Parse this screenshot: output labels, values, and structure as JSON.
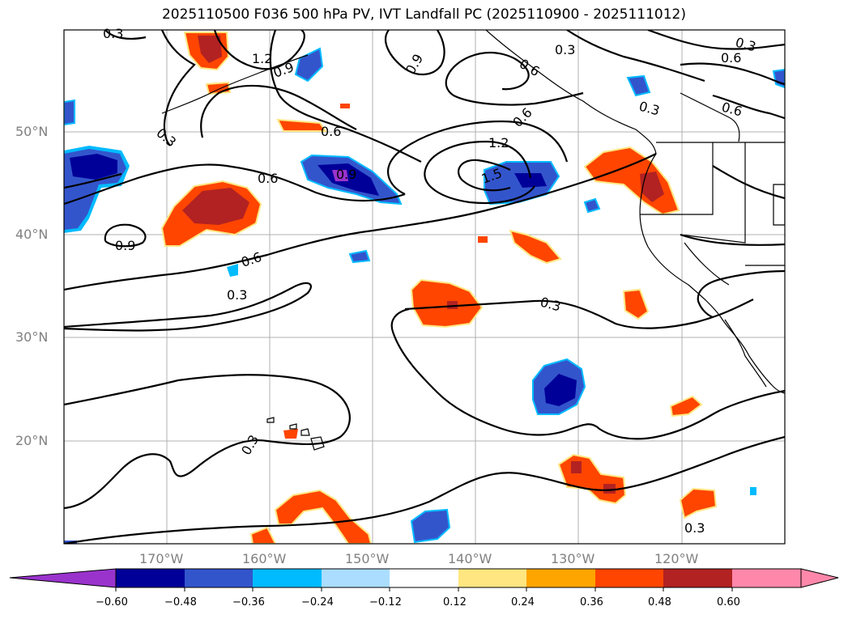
{
  "title": "2025110500 F036 500 hPa PV, IVT Landfall PC (2025110900 - 2025111012)",
  "lat_labels": [
    "50°N",
    "40°N",
    "30°N",
    "20°N"
  ],
  "lon_labels": [
    "170°W",
    "160°W",
    "150°W",
    "140°W",
    "130°W",
    "120°W"
  ],
  "contour_labels": [
    "0.3",
    "1.2",
    "0.9",
    "0.6",
    "0.3",
    "0.6",
    "0.3",
    "0.9",
    "0.6",
    "1.2",
    "1.5",
    "0.9",
    "0.6",
    "0.6",
    "0.3",
    "0.6",
    "0.9",
    "0.6",
    "0.3",
    "0.3",
    "0.3",
    "0.3"
  ],
  "colorbar": {
    "ticks": [
      "−0.60",
      "−0.48",
      "−0.36",
      "−0.24",
      "−0.12",
      "0.12",
      "0.24",
      "0.36",
      "0.48",
      "0.60"
    ],
    "colors": [
      "#9933cc",
      "#000099",
      "#3355cc",
      "#00bbff",
      "#aaddff",
      "#ffffff",
      "#ffe680",
      "#ffa500",
      "#ff4500",
      "#b22222",
      "#ff88aa"
    ]
  },
  "colors": {
    "blue_dark": "#000099",
    "blue_mid": "#3355cc",
    "blue_light": "#00bbff",
    "purple": "#9933cc",
    "red_orange": "#ff4500",
    "red_dark": "#b22222",
    "yellow": "#ffe680"
  }
}
